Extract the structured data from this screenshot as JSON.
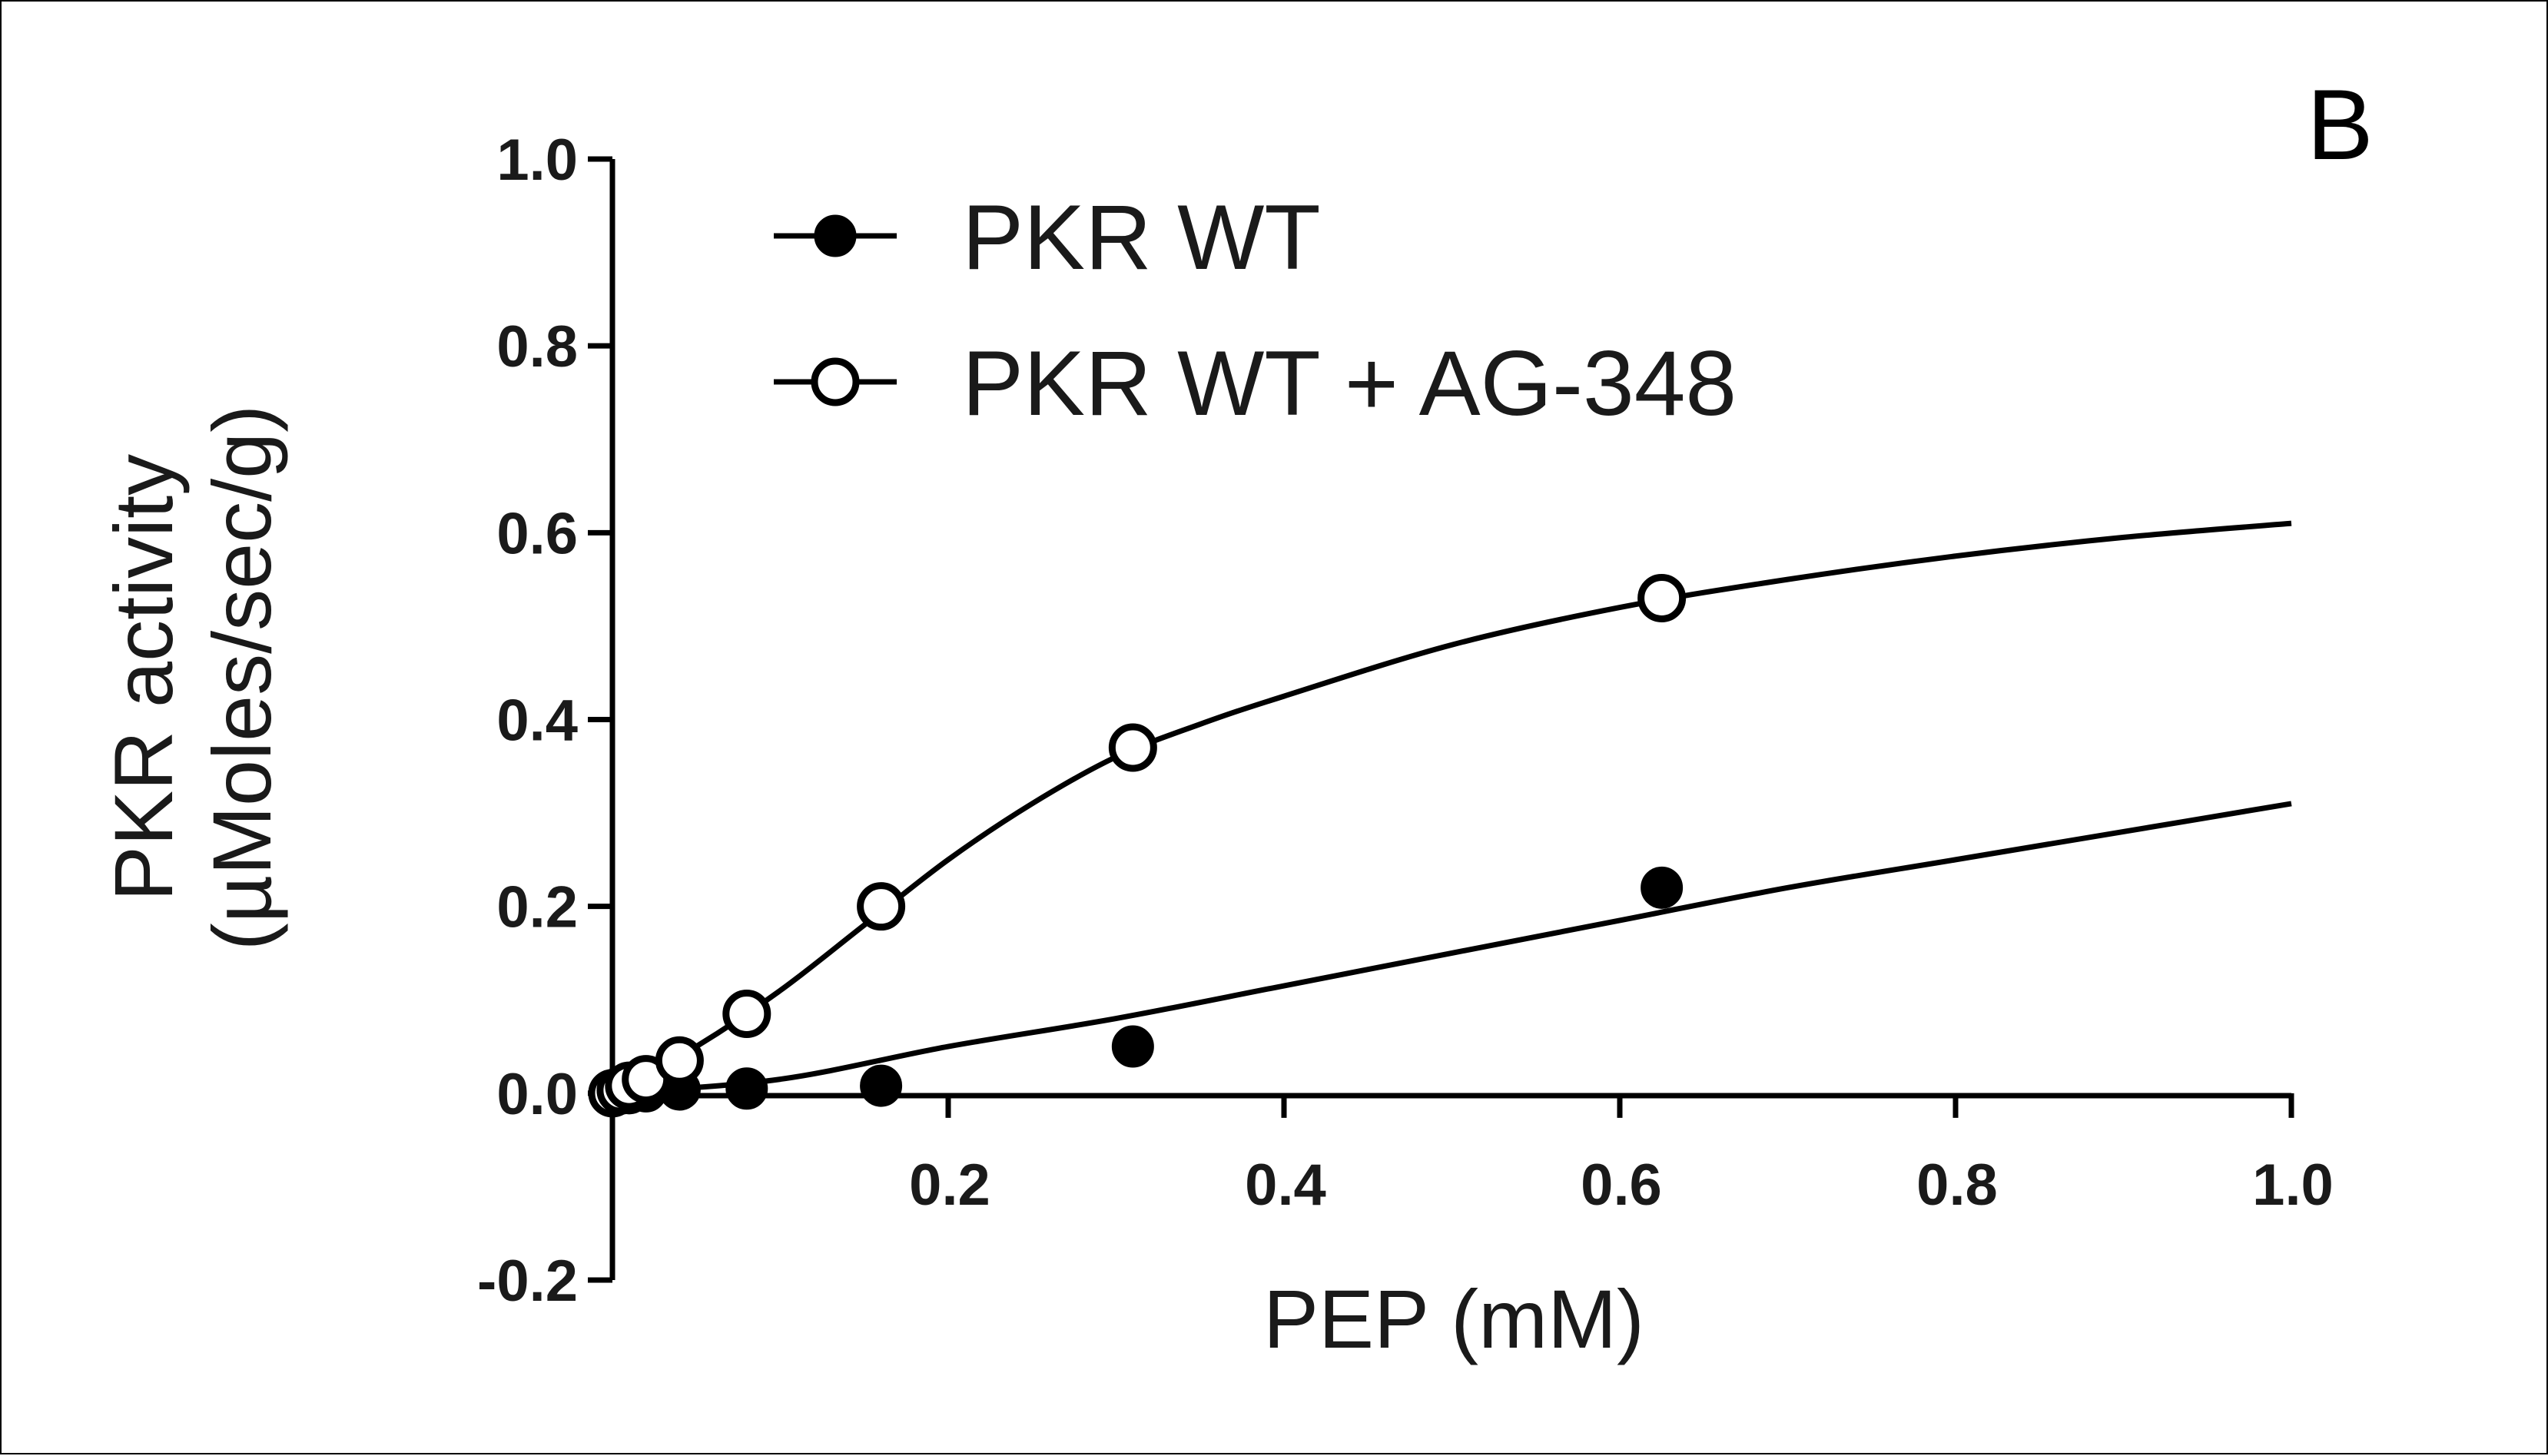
{
  "panel_label": "B",
  "chart_data": {
    "type": "scatter",
    "xlabel": "PEP (mM)",
    "ylabel_line1": "PKR activity",
    "ylabel_line2": "(µMoles/sec/g)",
    "xlim": [
      0.0,
      1.0
    ],
    "ylim": [
      -0.2,
      1.0
    ],
    "x_ticks": [
      0.2,
      0.4,
      0.6,
      0.8,
      1.0
    ],
    "x_tick_labels": [
      "0.2",
      "0.4",
      "0.6",
      "0.8",
      "1.0"
    ],
    "y_ticks": [
      1.0,
      0.8,
      0.6,
      0.4,
      0.2,
      0.0,
      -0.2
    ],
    "y_tick_labels": [
      "1.0",
      "0.8",
      "0.6",
      "0.4",
      "0.2",
      "0.0",
      "-0.2"
    ],
    "grid": false,
    "legend_position": "top-left",
    "series": [
      {
        "name": "PKR WT",
        "marker": "filled-circle",
        "color": "#000000",
        "x": [
          0.0,
          0.005,
          0.01,
          0.02,
          0.04,
          0.08,
          0.16,
          0.31,
          0.625
        ],
        "y": [
          0.0,
          0.0,
          0.0,
          0.002,
          0.004,
          0.005,
          0.008,
          0.05,
          0.22
        ],
        "fit": {
          "x": [
            0.0,
            0.1,
            0.2,
            0.3,
            0.4,
            0.5,
            0.6,
            0.7,
            0.8,
            0.9,
            1.0
          ],
          "y": [
            0.0,
            0.015,
            0.05,
            0.08,
            0.115,
            0.15,
            0.185,
            0.22,
            0.25,
            0.28,
            0.31
          ]
        }
      },
      {
        "name": "PKR WT + AG-348",
        "marker": "open-circle",
        "color": "#000000",
        "x": [
          0.0,
          0.005,
          0.01,
          0.02,
          0.04,
          0.08,
          0.16,
          0.31,
          0.625
        ],
        "y": [
          0.0,
          0.003,
          0.008,
          0.015,
          0.035,
          0.085,
          0.2,
          0.37,
          0.53
        ],
        "fit": {
          "x": [
            0.0,
            0.05,
            0.1,
            0.15,
            0.2,
            0.25,
            0.3,
            0.35,
            0.4,
            0.5,
            0.6,
            0.7,
            0.8,
            0.9,
            1.0
          ],
          "y": [
            0.0,
            0.05,
            0.11,
            0.18,
            0.25,
            0.31,
            0.36,
            0.395,
            0.425,
            0.48,
            0.52,
            0.55,
            0.575,
            0.595,
            0.61
          ]
        }
      }
    ]
  }
}
